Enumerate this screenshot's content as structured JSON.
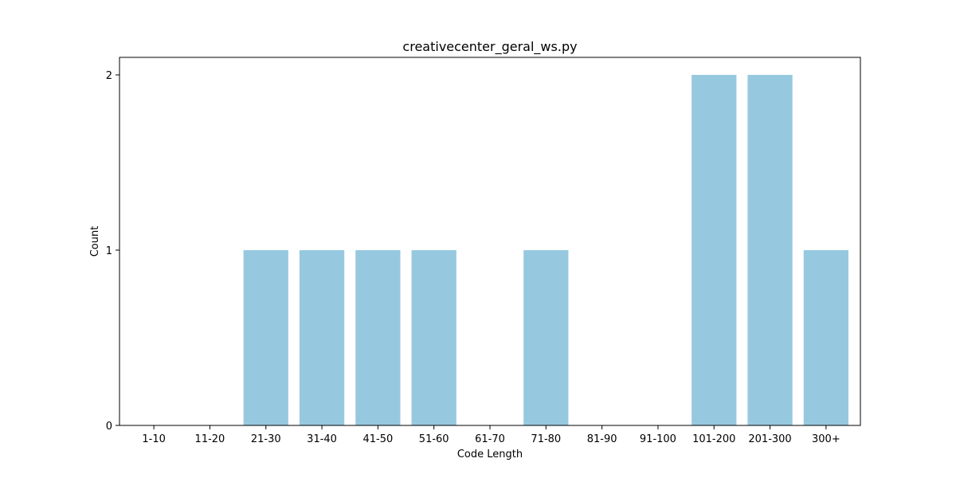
{
  "chart_data": {
    "type": "bar",
    "title": "creativecenter_geral_ws.py",
    "xlabel": "Code Length",
    "ylabel": "Count",
    "categories": [
      "1-10",
      "11-20",
      "21-30",
      "31-40",
      "41-50",
      "51-60",
      "61-70",
      "71-80",
      "81-90",
      "91-100",
      "101-200",
      "201-300",
      "300+"
    ],
    "values": [
      0,
      0,
      1,
      1,
      1,
      1,
      0,
      1,
      0,
      0,
      2,
      2,
      1
    ],
    "yticks": [
      "0",
      "1",
      "2"
    ],
    "ylim": [
      0,
      2.1
    ],
    "grid": false,
    "bar_color": "#96c9df"
  }
}
